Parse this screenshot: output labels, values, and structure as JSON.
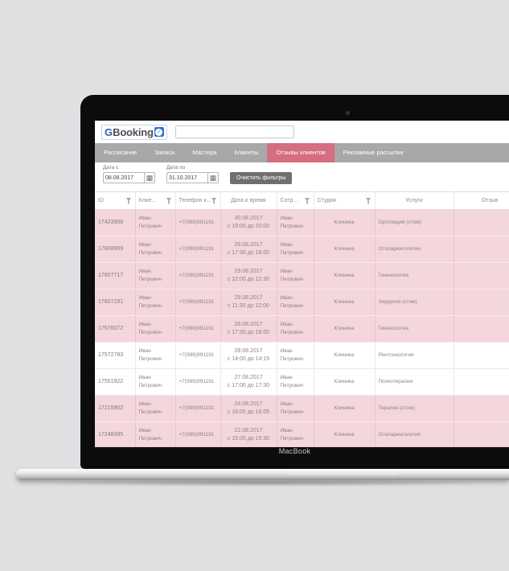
{
  "device": {
    "brand_label": "MacBook"
  },
  "app": {
    "logo": {
      "g": "G",
      "rest": "Booking",
      "badge_check": "✓"
    },
    "search": {
      "value": ""
    },
    "nav": {
      "items": [
        {
          "label": "Расписание",
          "active": false
        },
        {
          "label": "Записи",
          "active": false
        },
        {
          "label": "Мастера",
          "active": false
        },
        {
          "label": "Клиенты",
          "active": false
        },
        {
          "label": "Отзывы клиентов",
          "active": true
        },
        {
          "label": "Рекламные рассылки",
          "active": false
        }
      ]
    },
    "filters": {
      "date_from": {
        "label": "Дата с",
        "value": "08.08.2017"
      },
      "date_to": {
        "label": "Дата по",
        "value": "31.10.2017"
      },
      "calendar_icon": "▦",
      "clear_button": "Очистить фильтры"
    },
    "table": {
      "columns": [
        {
          "label": "ID",
          "filter": true,
          "center": false
        },
        {
          "label": "Клие...",
          "filter": true,
          "center": false
        },
        {
          "label": "Телефон к...",
          "filter": true,
          "center": false
        },
        {
          "label": "Дата и время",
          "filter": false,
          "center": true
        },
        {
          "label": "Сотр...",
          "filter": true,
          "center": false
        },
        {
          "label": "Студия",
          "filter": true,
          "center": false
        },
        {
          "label": "Услуги",
          "filter": false,
          "center": true
        },
        {
          "label": "Отзыв",
          "filter": false,
          "center": true
        }
      ],
      "rows": [
        {
          "id": "17423909",
          "client1": "Иван",
          "client2": "Петрович",
          "phone": "+7(999)991191",
          "date": "30.08.2017",
          "time": "с 19:00 до 20:00",
          "emp1": "Иван",
          "emp2": "Петрович",
          "studio": "Клиника",
          "service": "Ортопедия (стом)",
          "review": "",
          "highlighted": true
        },
        {
          "id": "17608999",
          "client1": "Иван",
          "client2": "Петрович",
          "phone": "+7(999)991191",
          "date": "29.08.2017",
          "time": "с 17:30 до 18:00",
          "emp1": "Иван",
          "emp2": "Петрович",
          "studio": "Клиника",
          "service": "Отоларингология",
          "review": "",
          "highlighted": true
        },
        {
          "id": "17607717",
          "client1": "Иван",
          "client2": "Петрович",
          "phone": "+7(999)991191",
          "date": "29.08.2017",
          "time": "с 12:00 до 12:30",
          "emp1": "Иван",
          "emp2": "Петрович",
          "studio": "Клиника",
          "service": "Гинекология",
          "review": "",
          "highlighted": true
        },
        {
          "id": "17607291",
          "client1": "Иван",
          "client2": "Петрович",
          "phone": "+7(999)991191",
          "date": "29.08.2017",
          "time": "с 11:30 до 12:00",
          "emp1": "Иван",
          "emp2": "Петрович",
          "studio": "Клиника",
          "service": "Хирургия (стом)",
          "review": "",
          "highlighted": true
        },
        {
          "id": "17576072",
          "client1": "Иван",
          "client2": "Петрович",
          "phone": "+7(999)991191",
          "date": "28.08.2017",
          "time": "с 17:30 до 18:00",
          "emp1": "Иван",
          "emp2": "Петрович",
          "studio": "Клиника",
          "service": "Гинекология",
          "review": "",
          "highlighted": true
        },
        {
          "id": "17572783",
          "client1": "Иван",
          "client2": "Петрович",
          "phone": "+7(999)991191",
          "date": "28.08.2017",
          "time": "с 14:00 до 14:15",
          "emp1": "Иван",
          "emp2": "Петрович",
          "studio": "Клиника",
          "service": "Рентгенология",
          "review": "",
          "highlighted": false
        },
        {
          "id": "17551922",
          "client1": "Иван",
          "client2": "Петрович",
          "phone": "+7(999)991191",
          "date": "27.08.2017",
          "time": "с 17:00 до 17:30",
          "emp1": "Иван",
          "emp2": "Петрович",
          "studio": "Клиника",
          "service": "Психотерапия",
          "review": "",
          "highlighted": false
        },
        {
          "id": "17215902",
          "client1": "Иван",
          "client2": "Петрович",
          "phone": "+7(999)991191",
          "date": "24.08.2017",
          "time": "с 16:00 до 16:05",
          "emp1": "Иван",
          "emp2": "Петрович",
          "studio": "Клиника",
          "service": "Терапия (стом)",
          "review": "",
          "highlighted": true
        },
        {
          "id": "17248395",
          "client1": "Иван",
          "client2": "Петрович",
          "phone": "+7(999)991191",
          "date": "22.08.2017",
          "time": "с 15:00 до 15:30",
          "emp1": "Иван",
          "emp2": "Петрович",
          "studio": "Клиника",
          "service": "Отоларингология",
          "review": "",
          "highlighted": true
        }
      ]
    }
  },
  "colors": {
    "background": "#dee0e2",
    "nav_gray": "#a8a8a8",
    "active_tab_pink": "#d46e80",
    "row_pink": "#f4d6dd",
    "logo_blue": "#2f66b1",
    "button_gray": "#6f6f6f"
  }
}
